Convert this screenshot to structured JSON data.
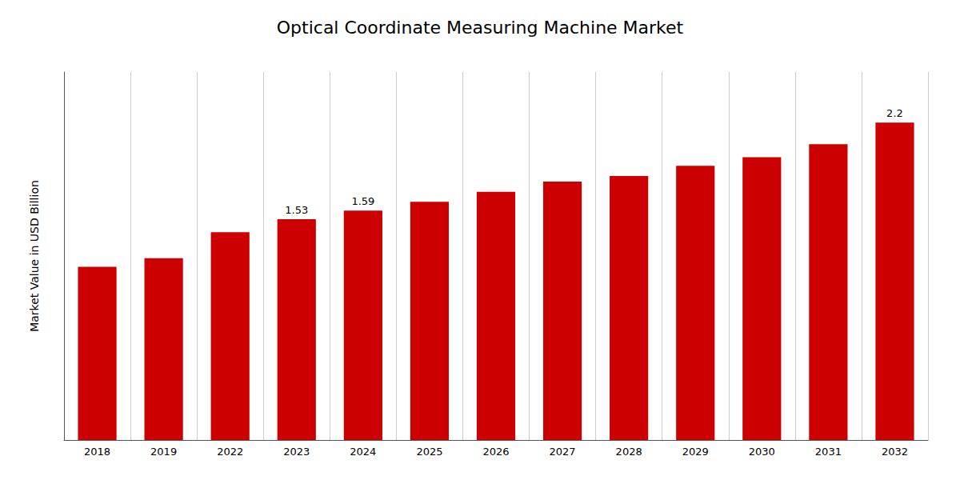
{
  "chart_data": {
    "type": "bar",
    "title": "Optical Coordinate Measuring Machine Market",
    "ylabel": "Market Value in USD Billion",
    "categories": [
      "2018",
      "2019",
      "2022",
      "2023",
      "2024",
      "2025",
      "2026",
      "2027",
      "2028",
      "2029",
      "2030",
      "2031",
      "2032"
    ],
    "values": [
      1.2,
      1.26,
      1.44,
      1.53,
      1.59,
      1.65,
      1.72,
      1.79,
      1.83,
      1.9,
      1.96,
      2.05,
      2.2
    ],
    "value_labels": [
      null,
      null,
      null,
      "1.53",
      "1.59",
      null,
      null,
      null,
      null,
      null,
      null,
      null,
      "2.2"
    ],
    "color": "#CC0000",
    "ylim": [
      0,
      2.55
    ],
    "yticks": [],
    "tick_labels": "x",
    "grid": true
  }
}
